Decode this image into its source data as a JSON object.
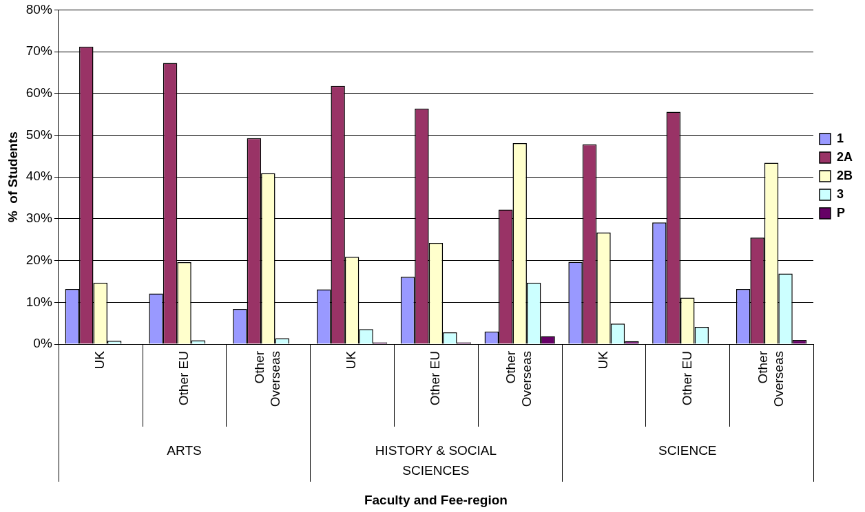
{
  "chart_data": {
    "type": "bar",
    "ylabel": "%  of Students",
    "categories": [
      "UK",
      "Other EU",
      "Other Overseas",
      "UK",
      "Other EU",
      "Other Overseas",
      "UK",
      "Other EU",
      "Other Overseas"
    ],
    "annotations": [
      "ARTS",
      "HISTORY & SOCIAL SCIENCES",
      "SCIENCE",
      "Faculty and Fee-region"
    ],
    "series": [
      {
        "name": "1",
        "color": "#9999ff",
        "values": [
          13.2,
          12.1,
          8.4,
          13.1,
          16.1,
          3.0,
          19.7,
          29.1,
          13.2
        ]
      },
      {
        "name": "2A",
        "color": "#993366",
        "values": [
          71.2,
          67.3,
          49.3,
          61.8,
          56.4,
          32.2,
          47.8,
          55.6,
          25.5
        ]
      },
      {
        "name": "2B",
        "color": "#ffffcc",
        "values": [
          14.7,
          19.6,
          40.9,
          20.9,
          24.2,
          48.1,
          26.7,
          11.1,
          43.4
        ]
      },
      {
        "name": "3",
        "color": "#ccffff",
        "values": [
          0.8,
          0.9,
          1.4,
          3.6,
          2.8,
          14.7,
          4.9,
          4.1,
          16.9
        ]
      },
      {
        "name": "P",
        "color": "#660066",
        "values": [
          0.1,
          0,
          0,
          0.4,
          0.4,
          1.9,
          0.7,
          0,
          1.0
        ]
      }
    ],
    "ylim": [
      0,
      80
    ],
    "yticks": [
      {
        "value": 0,
        "label": "0%"
      },
      {
        "value": 10,
        "label": "10%"
      },
      {
        "value": 20,
        "label": "20%"
      },
      {
        "value": 30,
        "label": "30%"
      },
      {
        "value": 40,
        "label": "40%"
      },
      {
        "value": 50,
        "label": "50%"
      },
      {
        "value": 60,
        "label": "60%"
      },
      {
        "value": 70,
        "label": "70%"
      },
      {
        "value": 80,
        "label": "80%"
      }
    ],
    "grid": "y",
    "legend": "right"
  }
}
